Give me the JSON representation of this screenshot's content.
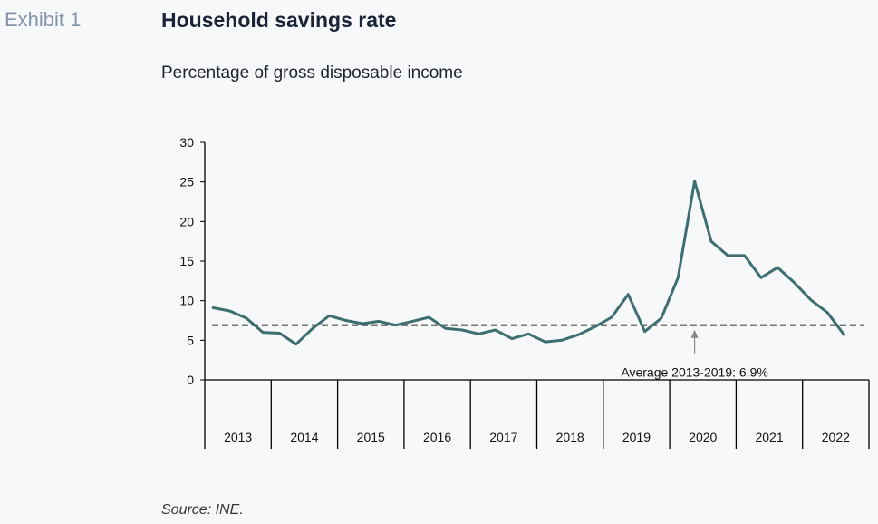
{
  "header": {
    "exhibit": "Exhibit 1",
    "title": "Household savings rate",
    "subtitle": "Percentage of gross disposable income"
  },
  "footer": {
    "source": "Source: INE."
  },
  "chart_data": {
    "type": "line",
    "title": "Household savings rate",
    "subtitle": "Percentage of gross disposable income",
    "ylim": [
      0,
      30
    ],
    "yticks": [
      0,
      5,
      10,
      15,
      20,
      25,
      30
    ],
    "years": [
      "2013",
      "2014",
      "2015",
      "2016",
      "2017",
      "2018",
      "2019",
      "2020",
      "2021",
      "2022"
    ],
    "x_unit": "quarter",
    "series": [
      {
        "color": "#3d6e70",
        "points": [
          [
            "2013-Q1",
            9.1
          ],
          [
            "2013-Q2",
            8.7
          ],
          [
            "2013-Q3",
            7.8
          ],
          [
            "2013-Q4",
            6.0
          ],
          [
            "2014-Q1",
            5.9
          ],
          [
            "2014-Q2",
            4.5
          ],
          [
            "2014-Q3",
            6.5
          ],
          [
            "2014-Q4",
            8.1
          ],
          [
            "2015-Q1",
            7.5
          ],
          [
            "2015-Q2",
            7.1
          ],
          [
            "2015-Q3",
            7.4
          ],
          [
            "2015-Q4",
            6.9
          ],
          [
            "2016-Q1",
            7.4
          ],
          [
            "2016-Q2",
            7.9
          ],
          [
            "2016-Q3",
            6.5
          ],
          [
            "2016-Q4",
            6.3
          ],
          [
            "2017-Q1",
            5.8
          ],
          [
            "2017-Q2",
            6.3
          ],
          [
            "2017-Q3",
            5.2
          ],
          [
            "2017-Q4",
            5.8
          ],
          [
            "2018-Q1",
            4.8
          ],
          [
            "2018-Q2",
            5.0
          ],
          [
            "2018-Q3",
            5.7
          ],
          [
            "2018-Q4",
            6.7
          ],
          [
            "2019-Q1",
            7.9
          ],
          [
            "2019-Q2",
            10.8
          ],
          [
            "2019-Q3",
            6.1
          ],
          [
            "2019-Q4",
            7.8
          ],
          [
            "2020-Q1",
            12.9
          ],
          [
            "2020-Q2",
            25.1
          ],
          [
            "2020-Q3",
            17.5
          ],
          [
            "2020-Q4",
            15.7
          ],
          [
            "2021-Q1",
            15.7
          ],
          [
            "2021-Q2",
            12.9
          ],
          [
            "2021-Q3",
            14.2
          ],
          [
            "2021-Q4",
            12.3
          ],
          [
            "2022-Q1",
            10.1
          ],
          [
            "2022-Q2",
            8.5
          ],
          [
            "2022-Q3",
            5.7
          ]
        ]
      }
    ],
    "reference_line": {
      "value": 6.9,
      "style": "dashed",
      "color": "#777777",
      "annotation": "Average 2013-2019: 6.9%"
    },
    "grid": false,
    "legend": "none"
  }
}
